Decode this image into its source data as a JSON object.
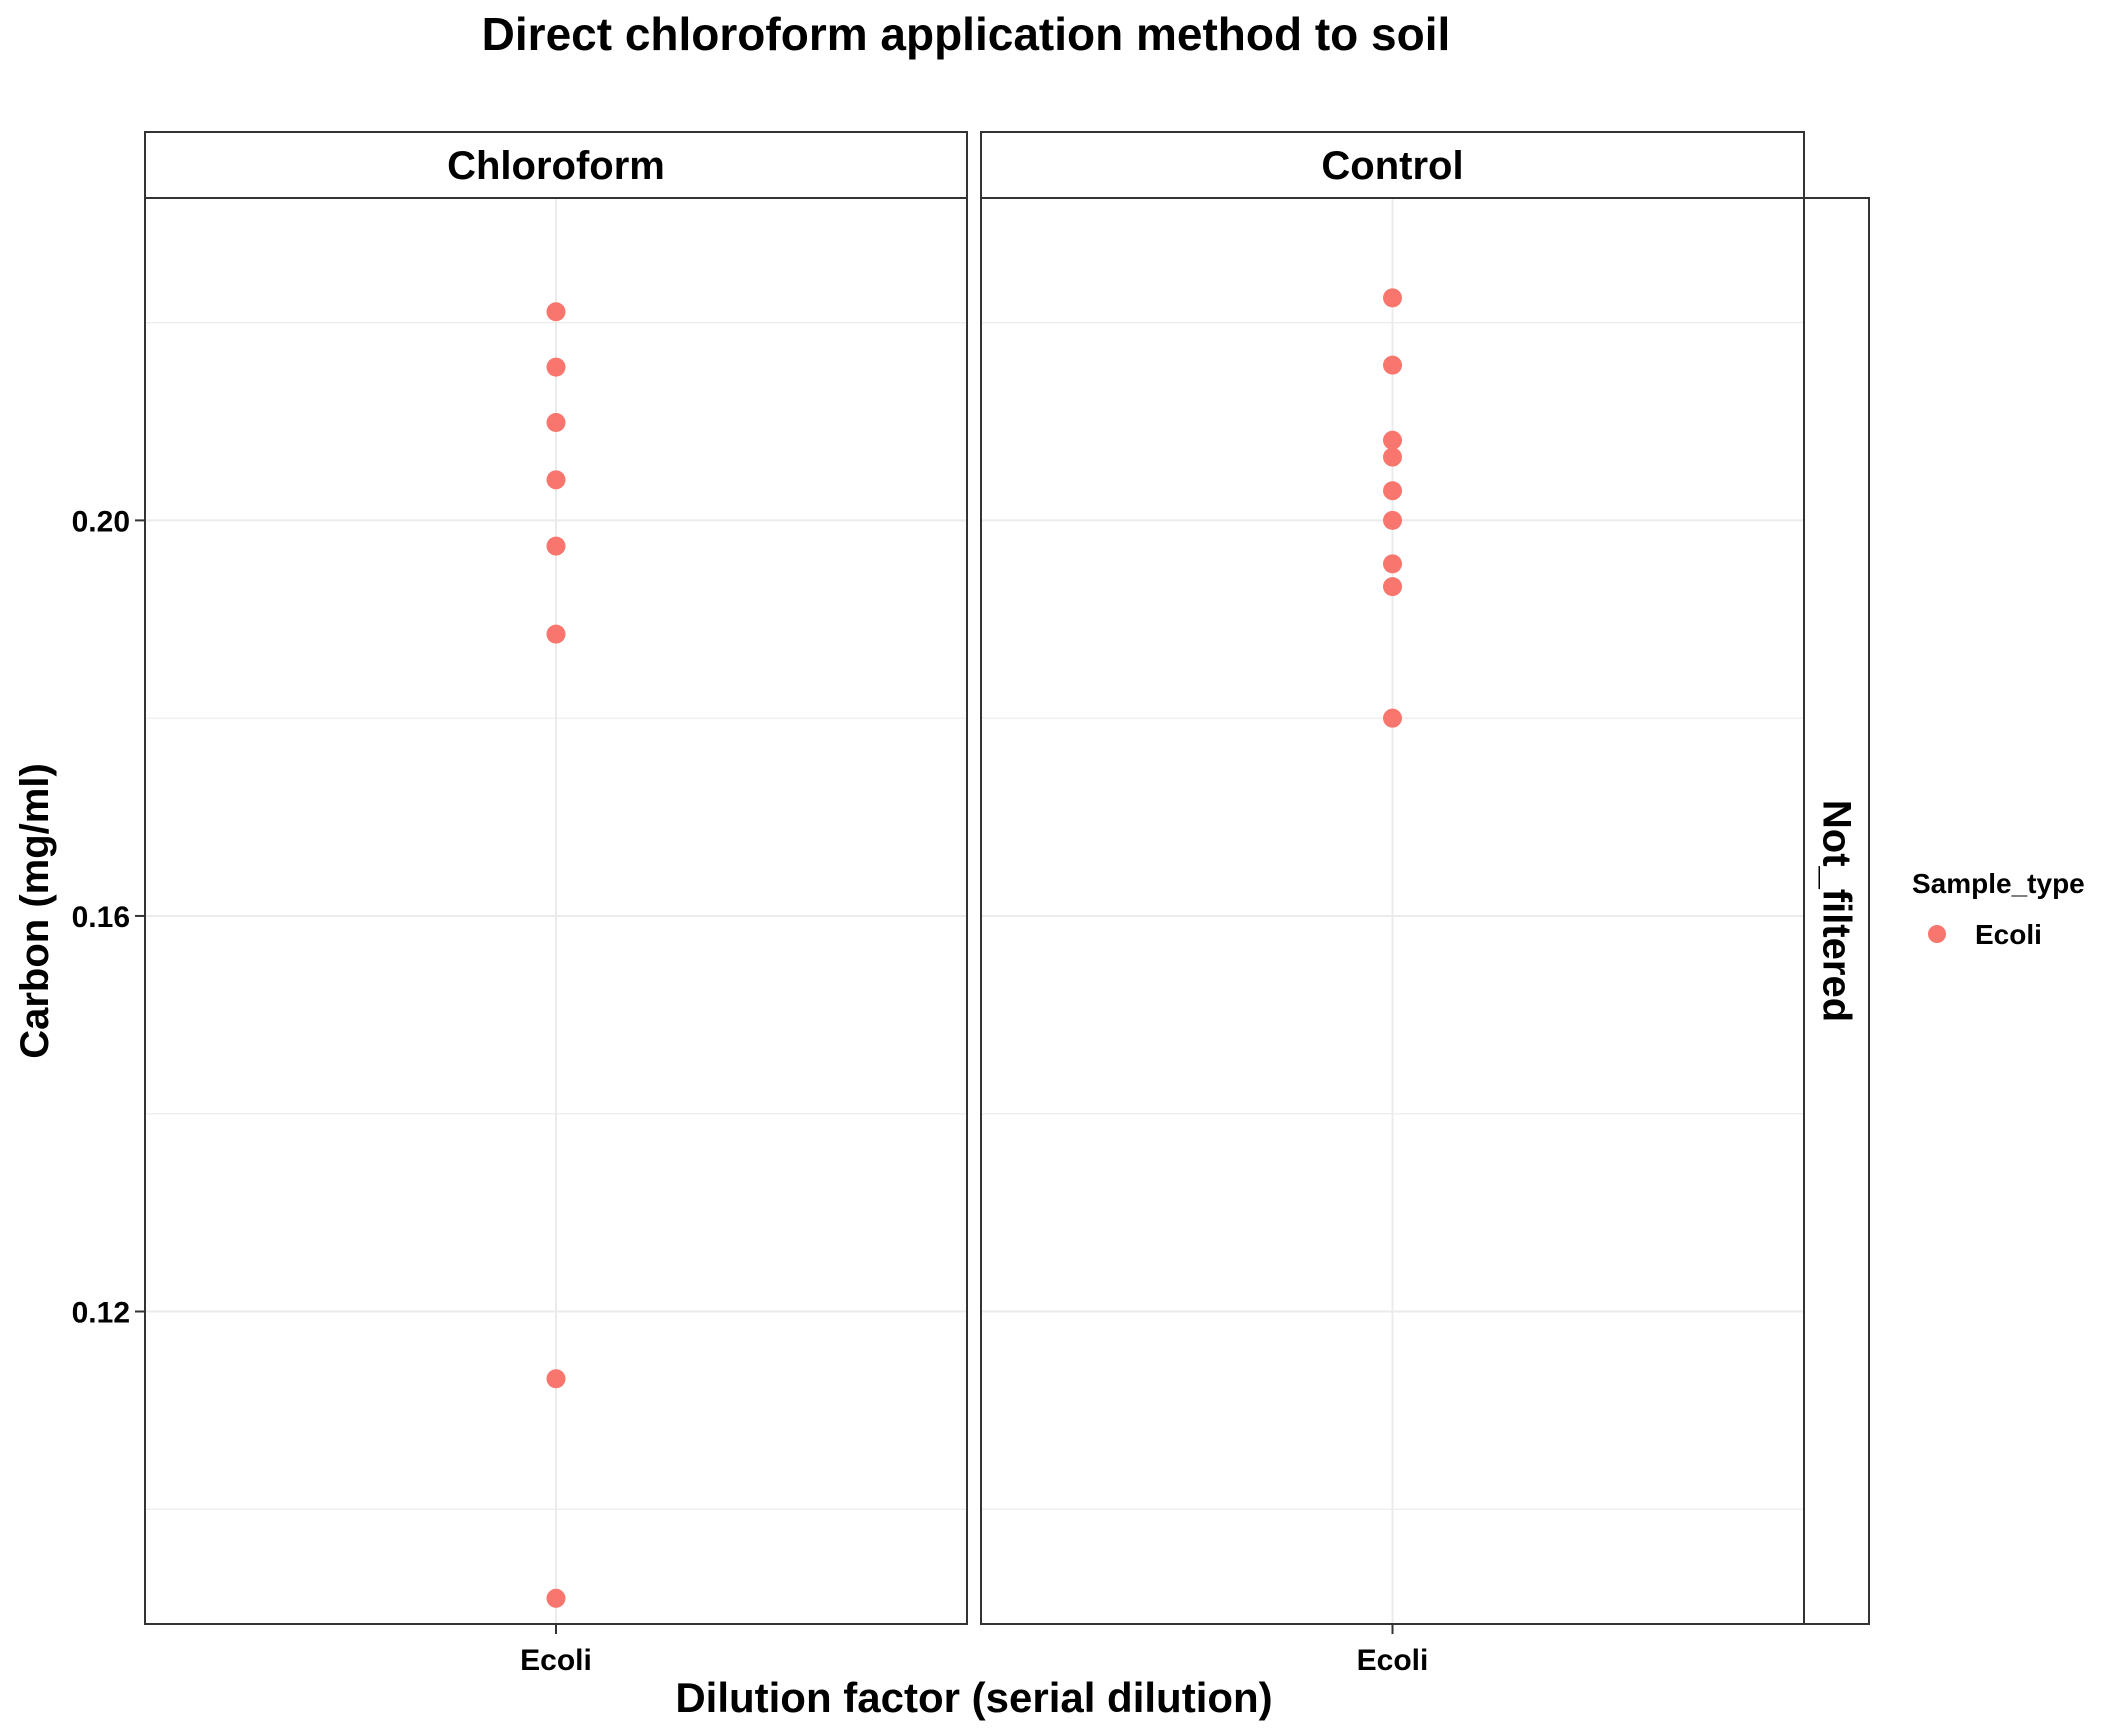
{
  "chart_data": {
    "type": "scatter",
    "title": "Direct chloroform application method to soil",
    "xlabel": "Dilution factor (serial dilution)",
    "ylabel": "Carbon (mg/ml)",
    "ylim": [
      0.0884,
      0.2326
    ],
    "yticks": [
      0.12,
      0.16,
      0.2
    ],
    "ytick_labels": [
      "0.12",
      "0.16",
      "0.20"
    ],
    "grid": true,
    "row_facet_label": "Not_filtered",
    "legend": {
      "title": "Sample_type",
      "position": "right",
      "entries": [
        {
          "label": "Ecoli",
          "color": "#F8766D"
        }
      ]
    },
    "panels": [
      {
        "label": "Chloroform",
        "categories": [
          "Ecoli"
        ],
        "series": [
          {
            "name": "Ecoli",
            "x": "Ecoli",
            "values": [
              0.2211,
              0.2155,
              0.2099,
              0.2041,
              0.1974,
              0.1885,
              0.1132,
              0.091
            ]
          }
        ]
      },
      {
        "label": "Control",
        "categories": [
          "Ecoli"
        ],
        "series": [
          {
            "name": "Ecoli",
            "x": "Ecoli",
            "values": [
              0.2225,
              0.2157,
              0.2081,
              0.2064,
              0.203,
              0.2,
              0.1956,
              0.1933,
              0.18
            ]
          }
        ]
      }
    ],
    "colors": {
      "point": "#F8766D",
      "grid": "#ebebeb",
      "border": "#333333"
    }
  }
}
